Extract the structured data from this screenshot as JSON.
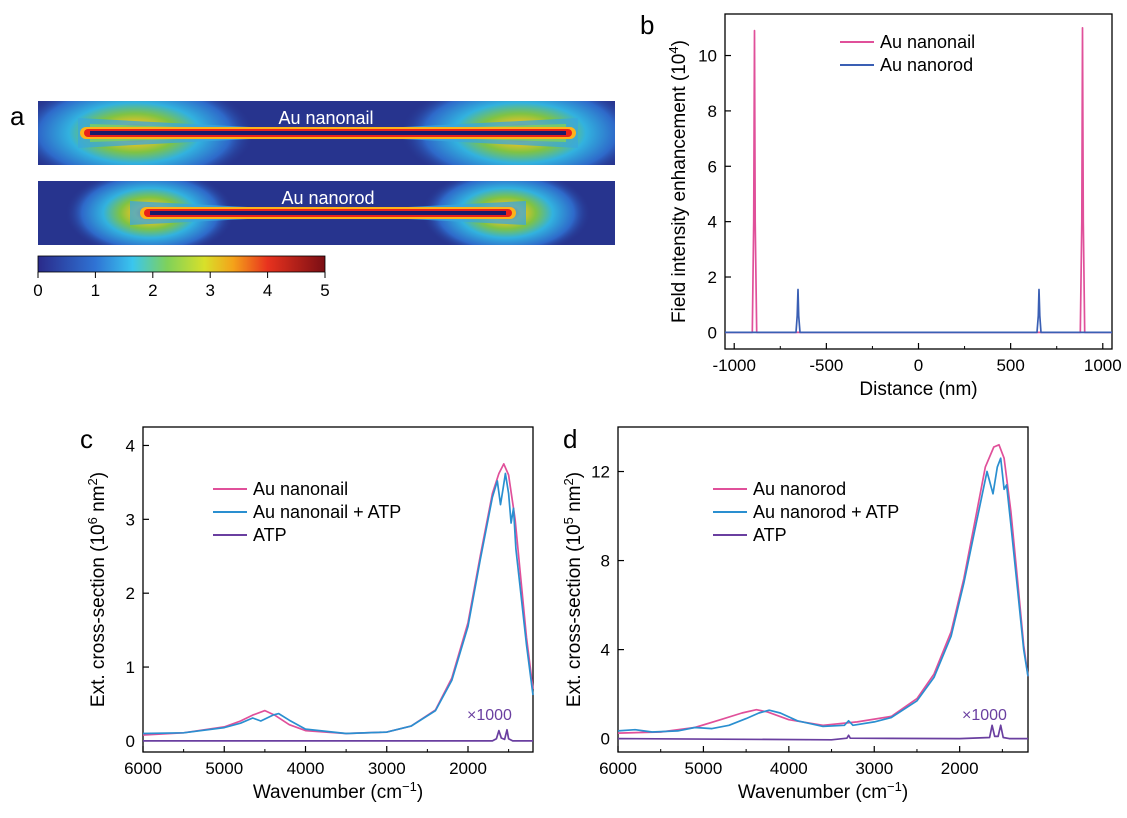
{
  "panels": {
    "a": "a",
    "b": "b",
    "c": "c",
    "d": "d"
  },
  "colors": {
    "pink": "#e0509a",
    "blue": "#3a5fb4",
    "cyan": "#2a8fd0",
    "purple": "#6a3fa0",
    "note": "#6a3fa0"
  },
  "chart_data": [
    {
      "panel": "a",
      "type": "heatmap",
      "maps": [
        {
          "label": "Au nanonail"
        },
        {
          "label": "Au nanorod"
        }
      ],
      "colorbar": {
        "ticks": [
          "0",
          "1",
          "2",
          "3",
          "4",
          "5"
        ],
        "range": [
          0,
          5
        ]
      }
    },
    {
      "panel": "b",
      "type": "line",
      "xlabel": "Distance (nm)",
      "ylabel": "Field intensity enhancement (10",
      "ylabel_sup": "4",
      "ylabel_end": ")",
      "xlim": [
        -1050,
        1050
      ],
      "ylim": [
        -0.6,
        11.5
      ],
      "xticks": [
        -1000,
        -500,
        0,
        500,
        1000
      ],
      "xtick_labels": [
        "-1000",
        "-500",
        "0",
        "500",
        "1000"
      ],
      "yticks": [
        0,
        2,
        4,
        6,
        8,
        10
      ],
      "ytick_labels": [
        "0",
        "2",
        "4",
        "6",
        "8",
        "10"
      ],
      "series": [
        {
          "name": "Au nanonail",
          "color": "#e0509a",
          "points": [
            [
              -1050,
              0
            ],
            [
              -902,
              0
            ],
            [
              -894,
              4.0
            ],
            [
              -890,
              10.9
            ],
            [
              -886,
              4.0
            ],
            [
              -878,
              0
            ],
            [
              878,
              0
            ],
            [
              886,
              4.0
            ],
            [
              890,
              11.0
            ],
            [
              894,
              4.0
            ],
            [
              902,
              0
            ],
            [
              1050,
              0
            ]
          ]
        },
        {
          "name": "Au nanorod",
          "color": "#3a5fb4",
          "points": [
            [
              -1050,
              0
            ],
            [
              -665,
              0
            ],
            [
              -658,
              0.6
            ],
            [
              -654,
              1.55
            ],
            [
              -650,
              0.6
            ],
            [
              -643,
              0
            ],
            [
              643,
              0
            ],
            [
              650,
              0.6
            ],
            [
              654,
              1.55
            ],
            [
              658,
              0.6
            ],
            [
              665,
              0
            ],
            [
              1050,
              0
            ]
          ]
        }
      ],
      "legend": "top-center"
    },
    {
      "panel": "c",
      "type": "line",
      "xlabel": "Wavenumber (cm",
      "xlabel_sup": "−1",
      "xlabel_end": ")",
      "ylabel": "Ext. cross-section (10",
      "ylabel_sup": "6",
      "ylabel_mid": " nm",
      "ylabel_sup2": "2",
      "ylabel_end": ")",
      "x_reversed": true,
      "xlim": [
        6000,
        1200
      ],
      "ylim": [
        -0.15,
        4.25
      ],
      "xticks": [
        6000,
        5000,
        4000,
        3000,
        2000
      ],
      "xtick_labels": [
        "6000",
        "5000",
        "4000",
        "3000",
        "2000"
      ],
      "yticks": [
        0,
        1,
        2,
        3,
        4
      ],
      "ytick_labels": [
        "0",
        "1",
        "2",
        "3",
        "4"
      ],
      "annotation": "×1000",
      "series": [
        {
          "name": "Au nanonail",
          "color": "#e0509a",
          "points": [
            [
              6000,
              0.08
            ],
            [
              5500,
              0.11
            ],
            [
              5000,
              0.19
            ],
            [
              4800,
              0.27
            ],
            [
              4650,
              0.35
            ],
            [
              4500,
              0.41
            ],
            [
              4380,
              0.35
            ],
            [
              4200,
              0.22
            ],
            [
              4000,
              0.14
            ],
            [
              3500,
              0.1
            ],
            [
              3000,
              0.12
            ],
            [
              2700,
              0.2
            ],
            [
              2400,
              0.42
            ],
            [
              2200,
              0.85
            ],
            [
              2000,
              1.6
            ],
            [
              1850,
              2.5
            ],
            [
              1700,
              3.35
            ],
            [
              1620,
              3.62
            ],
            [
              1560,
              3.75
            ],
            [
              1500,
              3.6
            ],
            [
              1420,
              3.0
            ],
            [
              1350,
              2.2
            ],
            [
              1280,
              1.4
            ],
            [
              1200,
              0.7
            ]
          ]
        },
        {
          "name": "Au nanonail + ATP",
          "color": "#2a8fd0",
          "points": [
            [
              6000,
              0.1
            ],
            [
              5500,
              0.11
            ],
            [
              5000,
              0.18
            ],
            [
              4800,
              0.24
            ],
            [
              4650,
              0.31
            ],
            [
              4550,
              0.27
            ],
            [
              4400,
              0.35
            ],
            [
              4330,
              0.37
            ],
            [
              4200,
              0.28
            ],
            [
              4000,
              0.16
            ],
            [
              3500,
              0.1
            ],
            [
              3000,
              0.12
            ],
            [
              2700,
              0.2
            ],
            [
              2400,
              0.41
            ],
            [
              2200,
              0.82
            ],
            [
              2000,
              1.55
            ],
            [
              1850,
              2.45
            ],
            [
              1700,
              3.3
            ],
            [
              1640,
              3.52
            ],
            [
              1600,
              3.2
            ],
            [
              1570,
              3.4
            ],
            [
              1540,
              3.62
            ],
            [
              1500,
              3.35
            ],
            [
              1470,
              2.95
            ],
            [
              1440,
              3.15
            ],
            [
              1410,
              2.6
            ],
            [
              1350,
              2.0
            ],
            [
              1280,
              1.3
            ],
            [
              1200,
              0.62
            ]
          ]
        },
        {
          "name": "ATP",
          "color": "#6a3fa0",
          "points": [
            [
              6000,
              0.0
            ],
            [
              1700,
              0.0
            ],
            [
              1650,
              0.03
            ],
            [
              1620,
              0.14
            ],
            [
              1590,
              0.04
            ],
            [
              1550,
              0.02
            ],
            [
              1520,
              0.15
            ],
            [
              1500,
              0.03
            ],
            [
              1450,
              0.0
            ],
            [
              1200,
              0.0
            ]
          ]
        }
      ],
      "legend": "top-left"
    },
    {
      "panel": "d",
      "type": "line",
      "xlabel": "Wavenumber (cm",
      "xlabel_sup": "−1",
      "xlabel_end": ")",
      "ylabel": "Ext. cross-section (10",
      "ylabel_sup": "5",
      "ylabel_mid": " nm",
      "ylabel_sup2": "2",
      "ylabel_end": ")",
      "x_reversed": true,
      "xlim": [
        6000,
        1200
      ],
      "ylim": [
        -0.6,
        14
      ],
      "xticks": [
        6000,
        5000,
        4000,
        3000,
        2000
      ],
      "xtick_labels": [
        "6000",
        "5000",
        "4000",
        "3000",
        "2000"
      ],
      "yticks": [
        0,
        4,
        8,
        12
      ],
      "ytick_labels": [
        "0",
        "4",
        "8",
        "12"
      ],
      "annotation": "×1000",
      "series": [
        {
          "name": "Au nanorod",
          "color": "#e0509a",
          "points": [
            [
              6000,
              0.25
            ],
            [
              5500,
              0.3
            ],
            [
              5100,
              0.5
            ],
            [
              4800,
              0.85
            ],
            [
              4550,
              1.15
            ],
            [
              4380,
              1.3
            ],
            [
              4250,
              1.2
            ],
            [
              4000,
              0.85
            ],
            [
              3600,
              0.6
            ],
            [
              3200,
              0.75
            ],
            [
              2800,
              1.0
            ],
            [
              2500,
              1.8
            ],
            [
              2300,
              2.9
            ],
            [
              2100,
              4.8
            ],
            [
              1950,
              7.2
            ],
            [
              1800,
              10.2
            ],
            [
              1700,
              12.2
            ],
            [
              1600,
              13.1
            ],
            [
              1540,
              13.2
            ],
            [
              1480,
              12.6
            ],
            [
              1400,
              10.2
            ],
            [
              1320,
              7.0
            ],
            [
              1250,
              4.2
            ],
            [
              1200,
              2.8
            ]
          ]
        },
        {
          "name": "Au nanorod + ATP",
          "color": "#2a8fd0",
          "points": [
            [
              6000,
              0.35
            ],
            [
              5800,
              0.4
            ],
            [
              5600,
              0.3
            ],
            [
              5300,
              0.35
            ],
            [
              5100,
              0.5
            ],
            [
              4900,
              0.45
            ],
            [
              4700,
              0.6
            ],
            [
              4500,
              0.9
            ],
            [
              4350,
              1.15
            ],
            [
              4230,
              1.28
            ],
            [
              4100,
              1.15
            ],
            [
              3900,
              0.8
            ],
            [
              3600,
              0.55
            ],
            [
              3350,
              0.6
            ],
            [
              3300,
              0.8
            ],
            [
              3250,
              0.6
            ],
            [
              3000,
              0.75
            ],
            [
              2800,
              0.95
            ],
            [
              2500,
              1.7
            ],
            [
              2300,
              2.75
            ],
            [
              2100,
              4.6
            ],
            [
              1950,
              7.0
            ],
            [
              1800,
              9.8
            ],
            [
              1680,
              12.0
            ],
            [
              1610,
              11.0
            ],
            [
              1560,
              12.2
            ],
            [
              1520,
              12.6
            ],
            [
              1480,
              11.2
            ],
            [
              1450,
              11.4
            ],
            [
              1400,
              9.6
            ],
            [
              1320,
              6.6
            ],
            [
              1250,
              4.0
            ],
            [
              1200,
              2.8
            ]
          ]
        },
        {
          "name": "ATP",
          "color": "#6a3fa0",
          "points": [
            [
              6000,
              0.0
            ],
            [
              3500,
              -0.05
            ],
            [
              3320,
              0.02
            ],
            [
              3300,
              0.15
            ],
            [
              3280,
              0.02
            ],
            [
              2000,
              0.0
            ],
            [
              1650,
              0.05
            ],
            [
              1620,
              0.6
            ],
            [
              1590,
              0.1
            ],
            [
              1550,
              0.1
            ],
            [
              1520,
              0.6
            ],
            [
              1490,
              0.05
            ],
            [
              1420,
              0.0
            ],
            [
              1200,
              0.0
            ]
          ]
        }
      ],
      "legend": "top-left"
    }
  ]
}
